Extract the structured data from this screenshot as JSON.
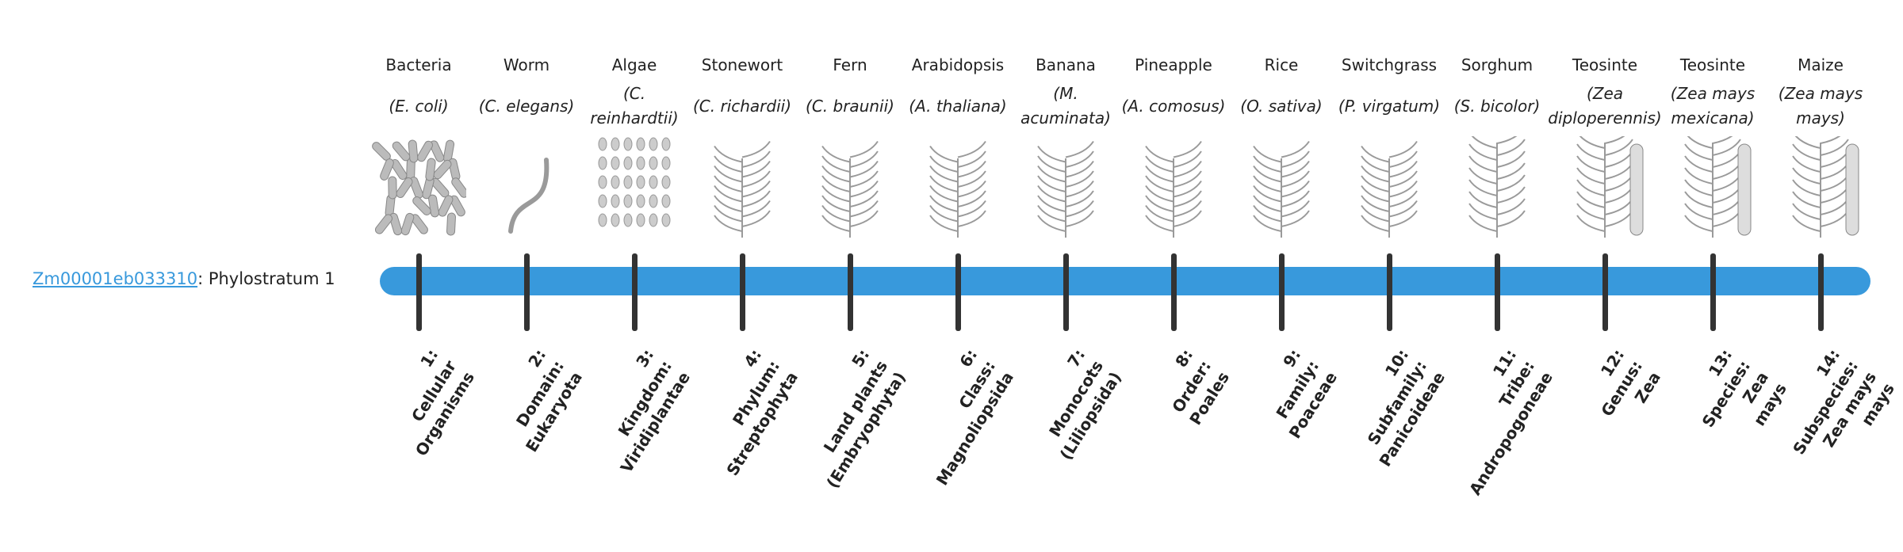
{
  "gene": {
    "id": "Zm00001eb033310",
    "suffix": ": Phylostratum 1"
  },
  "colors": {
    "bar": "#3899dc",
    "tick": "#333333",
    "link": "#3899dc"
  },
  "strata": [
    {
      "common": "Bacteria",
      "scientific": "(E. coli)",
      "icon": "bacteria-image",
      "rank": [
        "1:",
        "Cellular",
        "Organisms"
      ]
    },
    {
      "common": "Worm",
      "scientific": "(C. elegans)",
      "icon": "worm-image",
      "rank": [
        "2:",
        "Domain:",
        "Eukaryota"
      ]
    },
    {
      "common": "Algae",
      "scientific": "(C. reinhardtii)",
      "icon": "algae-image",
      "rank": [
        "3:",
        "Kingdom:",
        "Viridiplantae"
      ]
    },
    {
      "common": "Stonewort",
      "scientific": "(C. richardii)",
      "icon": "stonewort-image",
      "rank": [
        "4:",
        "Phylum:",
        "Streptophyta"
      ]
    },
    {
      "common": "Fern",
      "scientific": "(C. braunii)",
      "icon": "fern-image",
      "rank": [
        "5:",
        "Land plants",
        "(Embryophyta)"
      ]
    },
    {
      "common": "Arabidopsis",
      "scientific": "(A. thaliana)",
      "icon": "arabidopsis-image",
      "rank": [
        "6:",
        "Class:",
        "Magnoliopsida"
      ]
    },
    {
      "common": "Banana",
      "scientific": "(M. acuminata)",
      "icon": "banana-image",
      "rank": [
        "7:",
        "Monocots",
        "(Liliopsida)"
      ]
    },
    {
      "common": "Pineapple",
      "scientific": "(A. comosus)",
      "icon": "pineapple-image",
      "rank": [
        "8:",
        "Order:",
        "Poales"
      ]
    },
    {
      "common": "Rice",
      "scientific": "(O. sativa)",
      "icon": "rice-image",
      "rank": [
        "9:",
        "Family:",
        "Poaceae"
      ]
    },
    {
      "common": "Switchgrass",
      "scientific": "(P. virgatum)",
      "icon": "switchgrass-image",
      "rank": [
        "10:",
        "Subfamily:",
        "Panicoideae"
      ]
    },
    {
      "common": "Sorghum",
      "scientific": "(S. bicolor)",
      "icon": "sorghum-image",
      "rank": [
        "11:",
        "Tribe:",
        "Andropogoneae"
      ]
    },
    {
      "common": "Teosinte",
      "scientific": "(Zea diploperennis)",
      "icon": "teosinte-image",
      "rank": [
        "12:",
        "Genus:",
        "Zea"
      ]
    },
    {
      "common": "Teosinte",
      "scientific": "(Zea mays mexicana)",
      "icon": "teosinte-mexicana-image",
      "rank": [
        "13:",
        "Species:",
        "Zea",
        "mays"
      ]
    },
    {
      "common": "Maize",
      "scientific": "(Zea mays mays)",
      "icon": "maize-image",
      "rank": [
        "14:",
        "Subspecies:",
        "Zea mays",
        "mays"
      ]
    }
  ]
}
